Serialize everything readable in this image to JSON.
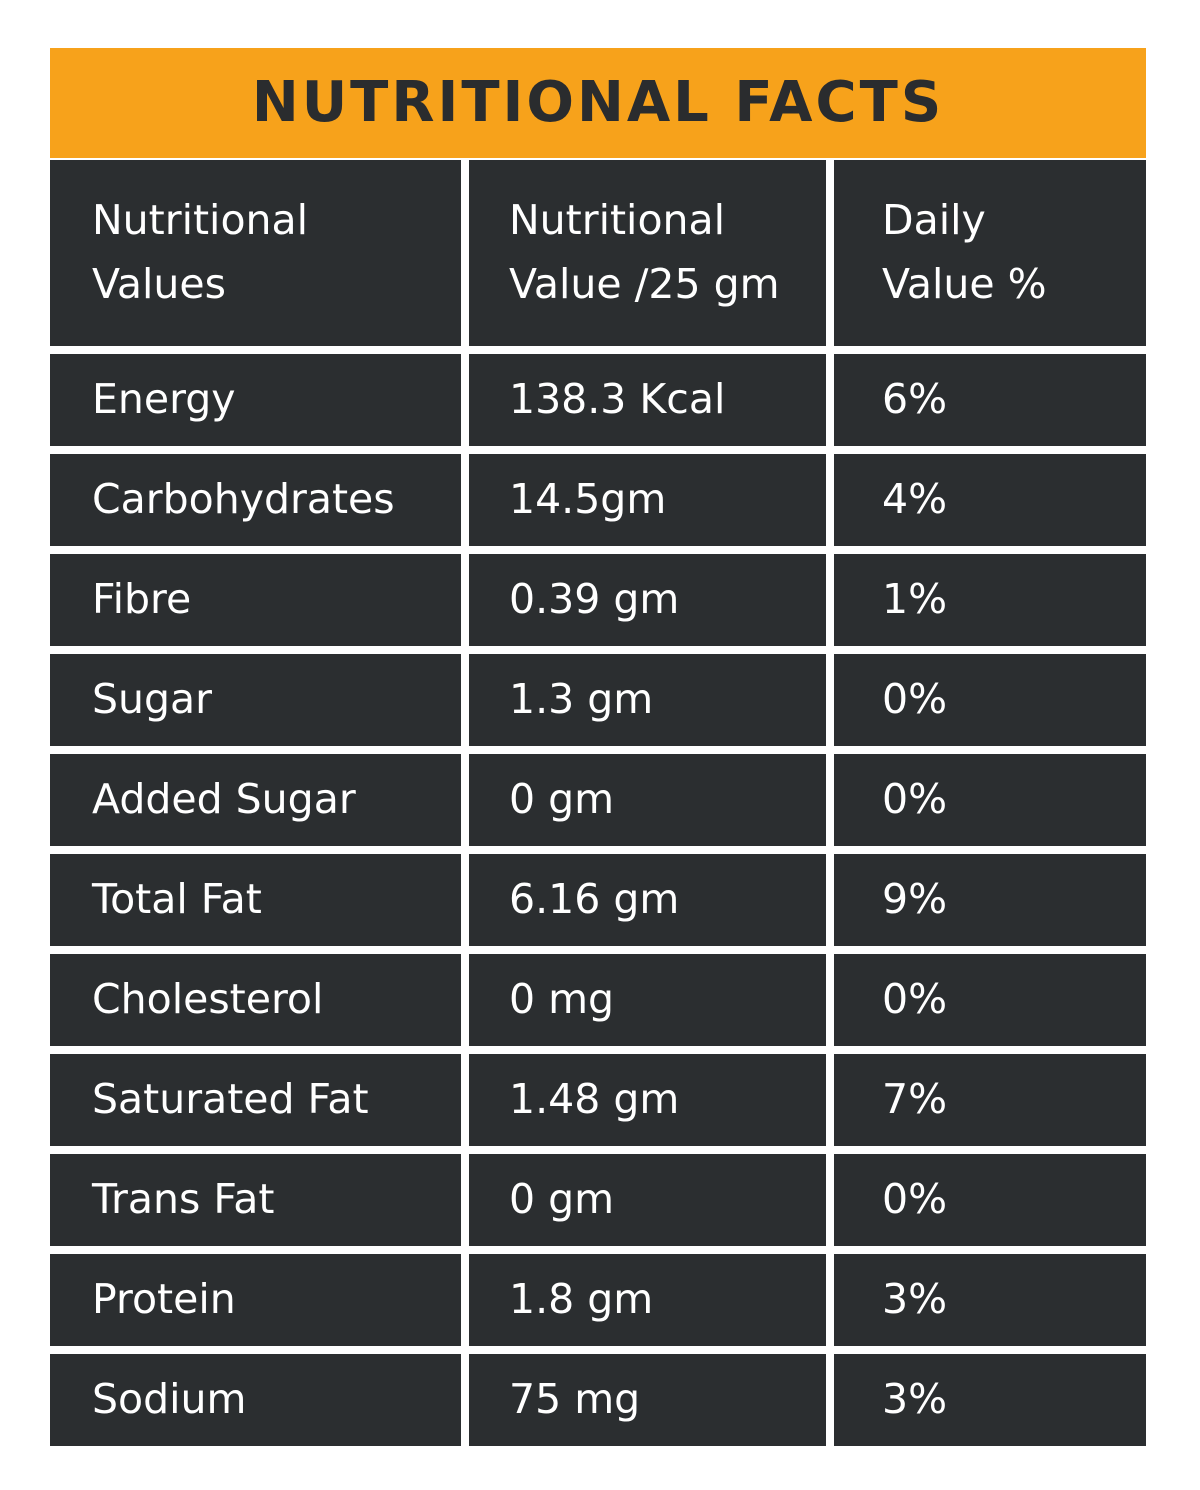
{
  "title": "NUTRITIONAL FACTS",
  "headers": [
    {
      "line1": "Nutritional",
      "line2": "Values"
    },
    {
      "line1": "Nutritional",
      "line2": "Value /25 gm"
    },
    {
      "line1": "Daily",
      "line2": "Value %"
    }
  ],
  "rows": [
    {
      "name": "Energy",
      "value": "138.3 Kcal",
      "daily": "6%"
    },
    {
      "name": "Carbohydrates",
      "value": "14.5gm",
      "daily": "4%"
    },
    {
      "name": "Fibre",
      "value": "0.39 gm",
      "daily": "1%"
    },
    {
      "name": "Sugar",
      "value": "1.3 gm",
      "daily": "0%"
    },
    {
      "name": "Added Sugar",
      "value": "0 gm",
      "daily": "0%"
    },
    {
      "name": "Total Fat",
      "value": "6.16 gm",
      "daily": "9%"
    },
    {
      "name": "Cholesterol",
      "value": "0 mg",
      "daily": "0%"
    },
    {
      "name": "Saturated Fat",
      "value": "1.48 gm",
      "daily": "7%"
    },
    {
      "name": "Trans Fat",
      "value": "0 gm",
      "daily": "0%"
    },
    {
      "name": "Protein",
      "value": "1.8 gm",
      "daily": "3%"
    },
    {
      "name": "Sodium",
      "value": "75 mg",
      "daily": "3%"
    }
  ],
  "colors": {
    "title_bar": "#f7a21b",
    "title_text": "#2a2c2e",
    "cell_bg": "#2b2e30",
    "cell_text": "#ffffff"
  }
}
